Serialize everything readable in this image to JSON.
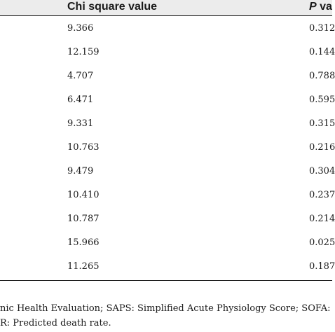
{
  "table": {
    "headers": {
      "chi": "Chi square value",
      "p_italic": "P",
      "p_rest": " va"
    },
    "rows": [
      {
        "chi": "9.366",
        "p": "0.312"
      },
      {
        "chi": "12.159",
        "p": "0.144"
      },
      {
        "chi": "4.707",
        "p": "0.788"
      },
      {
        "chi": "6.471",
        "p": "0.595"
      },
      {
        "chi": "9.331",
        "p": "0.315"
      },
      {
        "chi": "10.763",
        "p": "0.216"
      },
      {
        "chi": "9.479",
        "p": "0.304"
      },
      {
        "chi": "10.410",
        "p": "0.237"
      },
      {
        "chi": "10.787",
        "p": "0.214"
      },
      {
        "chi": "15.966",
        "p": "0.025"
      },
      {
        "chi": "11.265",
        "p": "0.187"
      }
    ]
  },
  "footnote": {
    "line1": "nic Health Evaluation; SAPS: Simplified Acute Physiology Score; SOFA:",
    "line2": "R: Predicted death rate."
  }
}
